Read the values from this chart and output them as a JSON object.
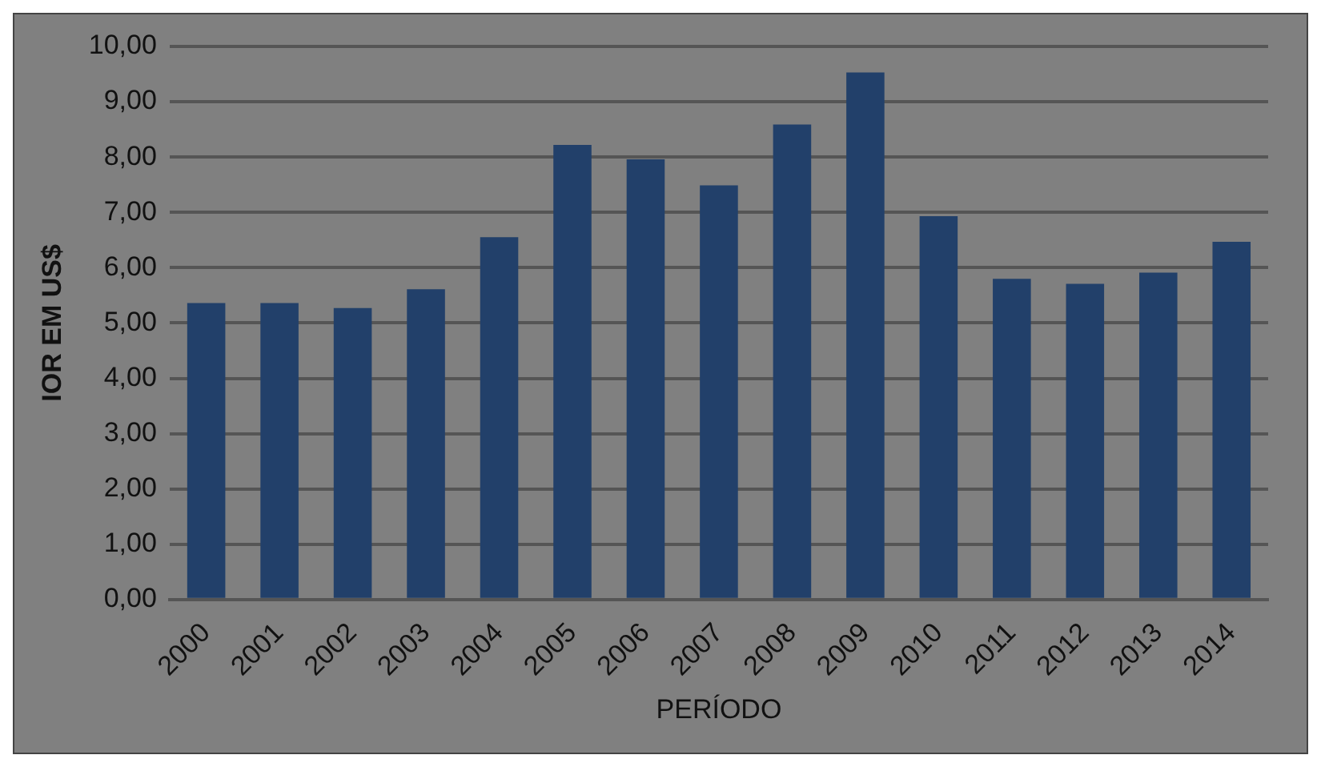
{
  "chart_data": {
    "type": "bar",
    "xlabel": "PERÍODO",
    "ylabel": "IOR EM US$",
    "categories": [
      "2000",
      "2001",
      "2002",
      "2003",
      "2004",
      "2005",
      "2006",
      "2007",
      "2008",
      "2009",
      "2010",
      "2011",
      "2012",
      "2013",
      "2014"
    ],
    "values": [
      5.36,
      5.36,
      5.27,
      5.61,
      6.55,
      8.22,
      7.96,
      7.49,
      8.59,
      9.53,
      6.93,
      5.8,
      5.71,
      5.91,
      6.47
    ],
    "color": "#22406a",
    "ylim": [
      0,
      10
    ],
    "yticks": [
      {
        "value": 0,
        "label": "0,00"
      },
      {
        "value": 1,
        "label": "1,00"
      },
      {
        "value": 2,
        "label": "2,00"
      },
      {
        "value": 3,
        "label": "3,00"
      },
      {
        "value": 4,
        "label": "4,00"
      },
      {
        "value": 5,
        "label": "5,00"
      },
      {
        "value": 6,
        "label": "6,00"
      },
      {
        "value": 7,
        "label": "7,00"
      },
      {
        "value": 8,
        "label": "8,00"
      },
      {
        "value": 9,
        "label": "9,00"
      },
      {
        "value": 10,
        "label": "10,00"
      }
    ],
    "grid": "y",
    "legend": false
  }
}
